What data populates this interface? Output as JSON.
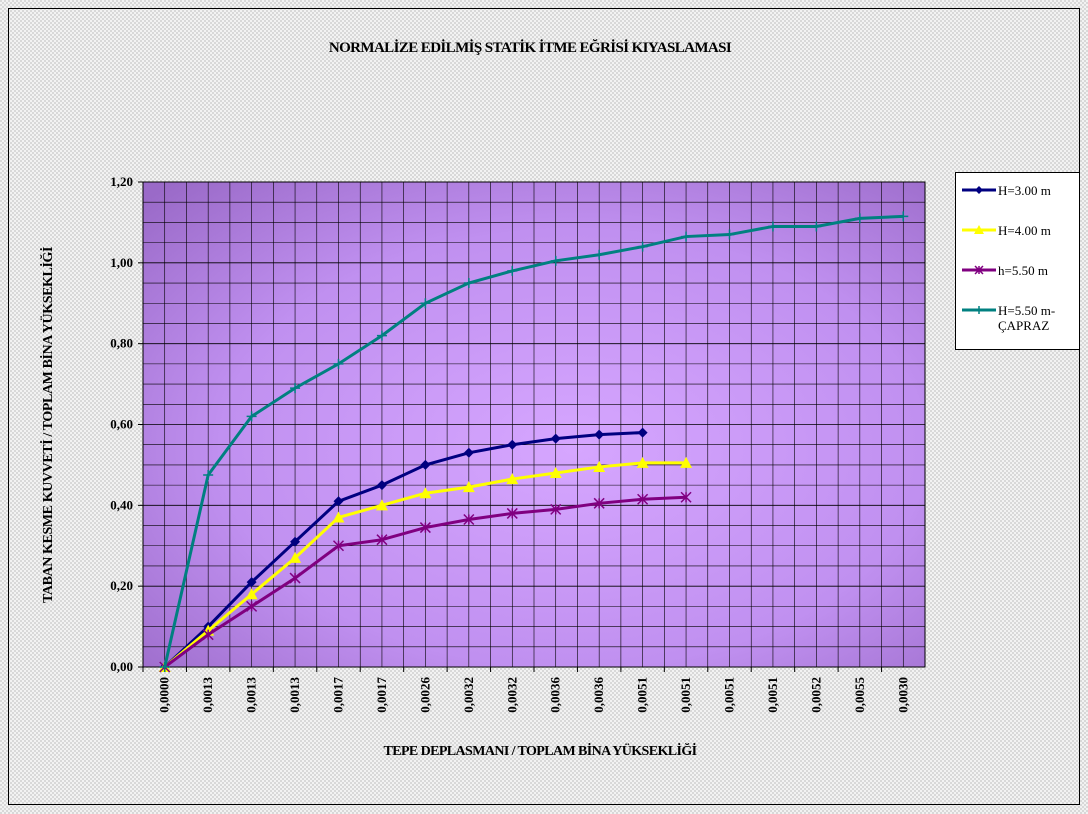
{
  "chart_data": {
    "type": "line",
    "title": "NORMALİZE EDİLMİŞ STATİK İTME EĞRİSİ KIYASLAMASI",
    "x_label": "TEPE DEPLASMANI / TOPLAM BİNA YÜKSEKLİĞİ",
    "y_label": "TABAN KESME KUVVETİ / TOPLAM BİNA YÜKSEKLİĞİ",
    "categories": [
      "0,0000",
      "0,0013",
      "0,0013",
      "0,0013",
      "0,0017",
      "0,0017",
      "0,0026",
      "0,0032",
      "0,0032",
      "0,0036",
      "0,0036",
      "0,0051",
      "0,0051",
      "0,0051",
      "0,0051",
      "0,0052",
      "0,0055",
      "0,0030"
    ],
    "ylim": [
      0,
      1.2
    ],
    "yticks": [
      {
        "value": 0,
        "label": "0,00"
      },
      {
        "value": 0.2,
        "label": "0,20"
      },
      {
        "value": 0.4,
        "label": "0,40"
      },
      {
        "value": 0.6,
        "label": "0,60"
      },
      {
        "value": 0.8,
        "label": "0,80"
      },
      {
        "value": 1.0,
        "label": "1,00"
      },
      {
        "value": 1.2,
        "label": "1,20"
      }
    ],
    "minor_yticks": [
      0.05,
      0.1,
      0.15,
      0.25,
      0.3,
      0.35,
      0.45,
      0.5,
      0.55,
      0.65,
      0.7,
      0.75,
      0.85,
      0.9,
      0.95,
      1.05,
      1.1,
      1.15
    ],
    "grid": true,
    "series": [
      {
        "name": "H=3.00 m",
        "color": "#000080",
        "marker": "diamond",
        "values": [
          0,
          0.1,
          0.21,
          0.31,
          0.41,
          0.45,
          0.5,
          0.53,
          0.55,
          0.565,
          0.575,
          0.58,
          null,
          null,
          null,
          null,
          null,
          null
        ]
      },
      {
        "name": "H=4.00 m",
        "color": "#ffff00",
        "marker": "triangle",
        "values": [
          0,
          0.09,
          0.18,
          0.27,
          0.37,
          0.4,
          0.43,
          0.445,
          0.465,
          0.48,
          0.495,
          0.505,
          0.505,
          null,
          null,
          null,
          null,
          null
        ]
      },
      {
        "name": "h=5.50 m",
        "color": "#800080",
        "marker": "star",
        "values": [
          0,
          0.08,
          0.15,
          0.22,
          0.3,
          0.315,
          0.345,
          0.365,
          0.38,
          0.39,
          0.405,
          0.415,
          0.42,
          null,
          null,
          null,
          null,
          null
        ]
      },
      {
        "name": "H=5.50 m-ÇAPRAZ",
        "color": "#008080",
        "marker": "plus",
        "values": [
          0,
          0.475,
          0.62,
          0.69,
          0.75,
          0.82,
          0.9,
          0.95,
          0.98,
          1.005,
          1.02,
          1.04,
          1.065,
          1.07,
          1.09,
          1.09,
          1.11,
          1.115
        ]
      }
    ]
  }
}
